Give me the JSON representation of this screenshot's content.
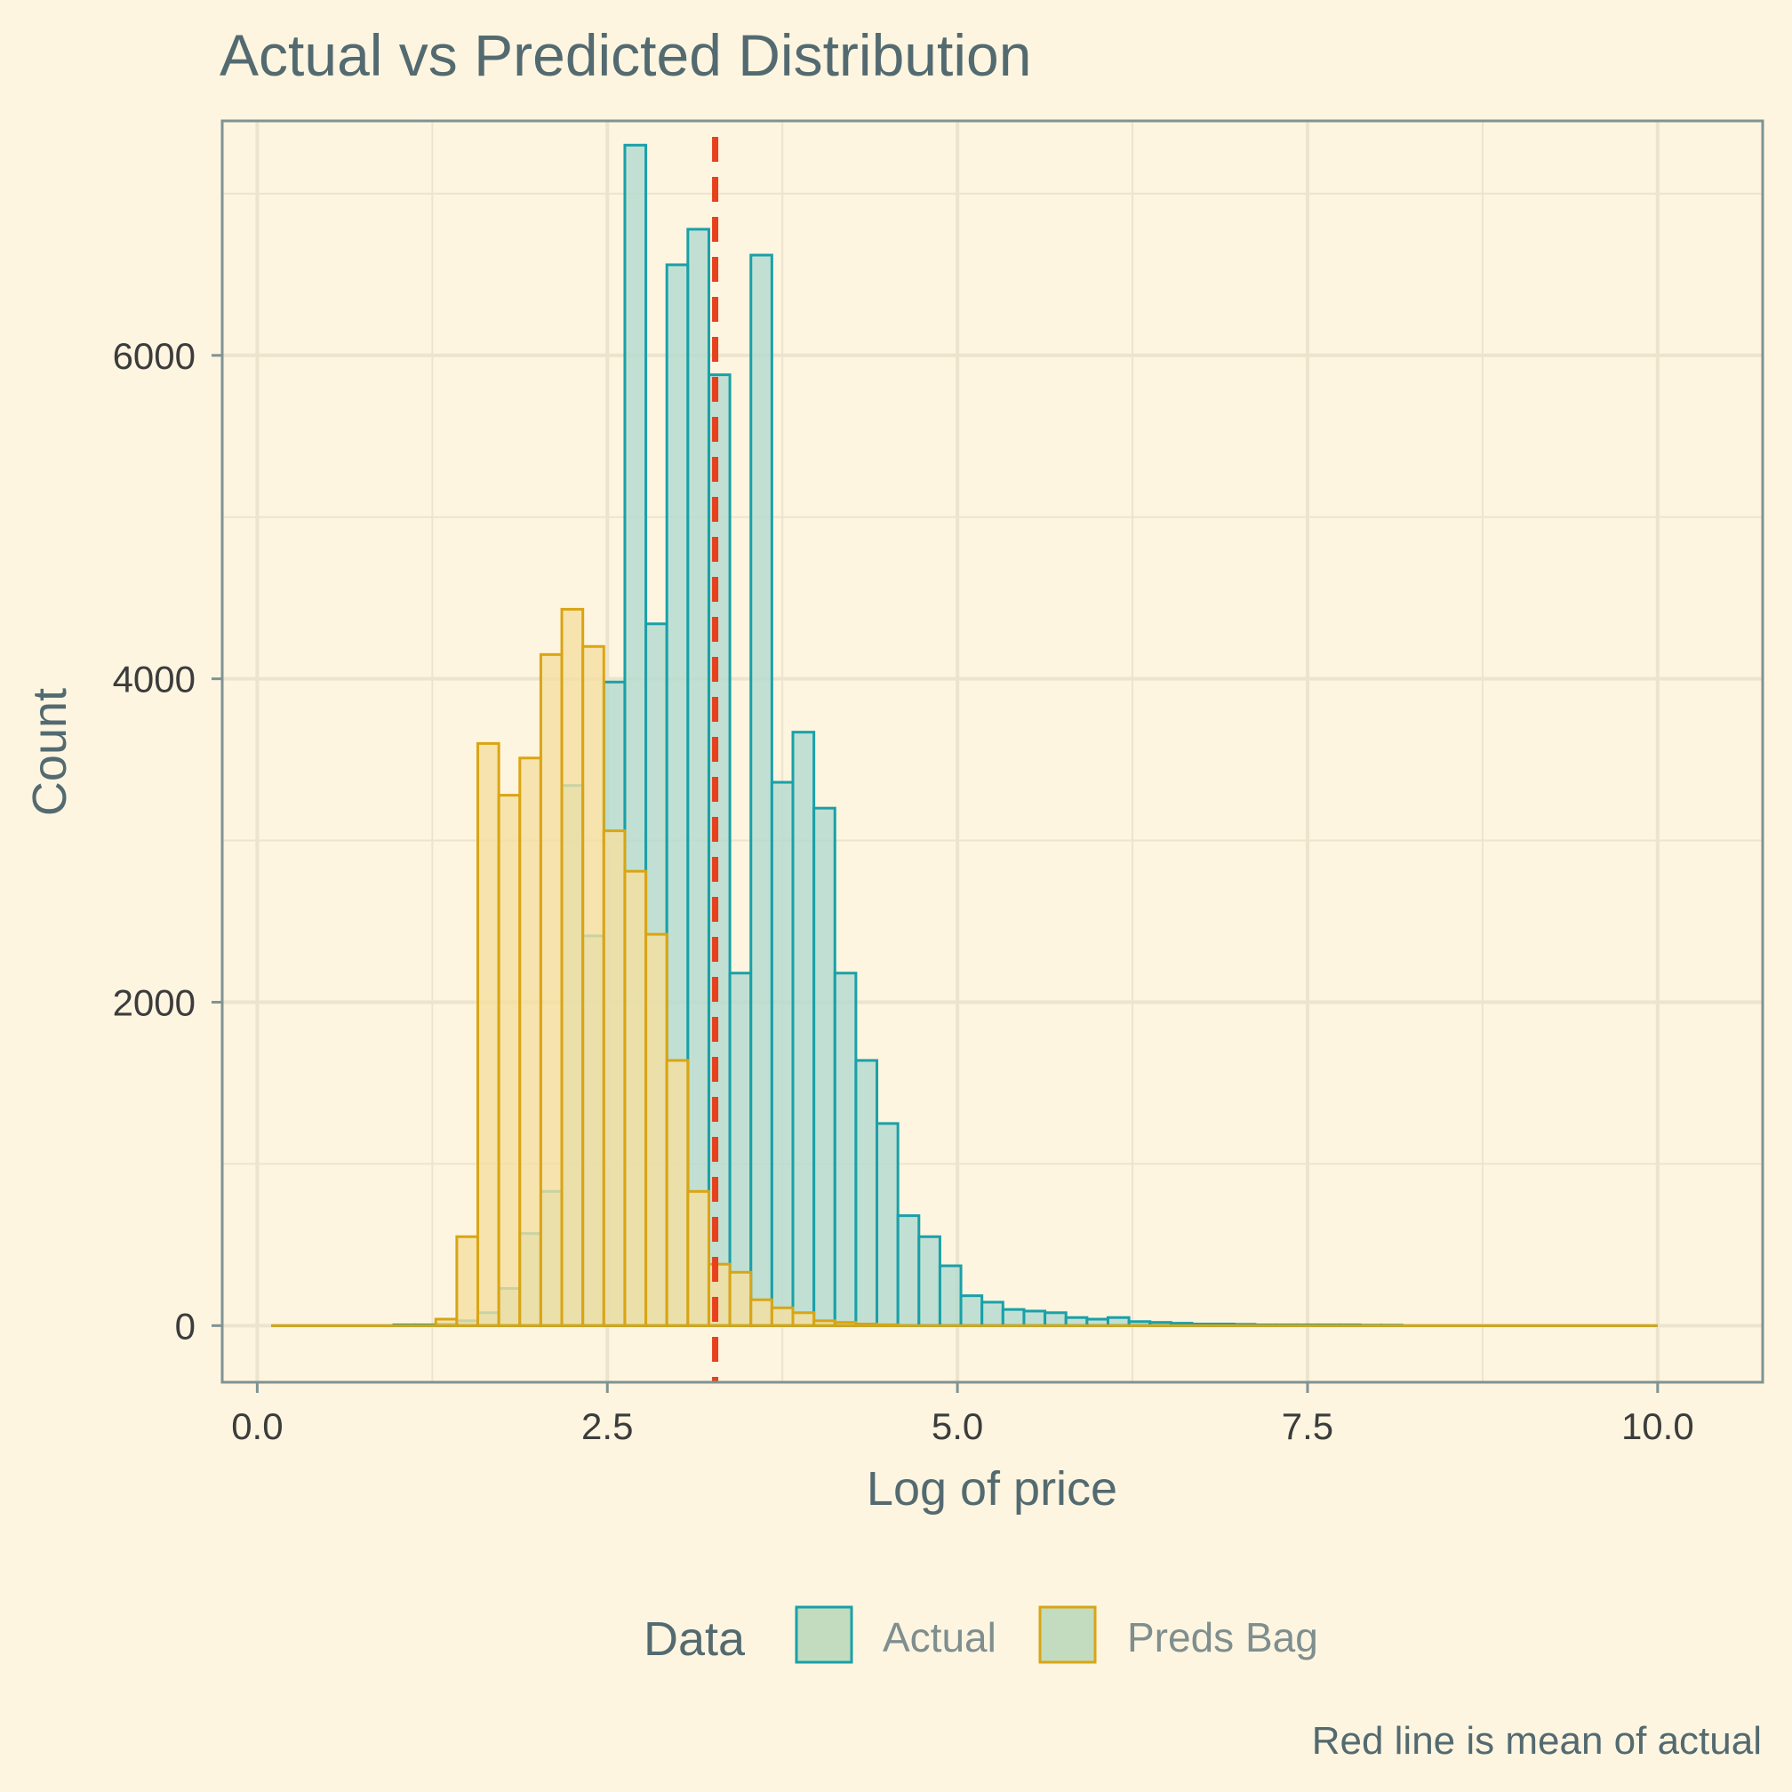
{
  "chart_data": {
    "type": "histogram",
    "title": "Actual vs Predicted Distribution",
    "xlabel": "Log of price",
    "ylabel": "Count",
    "caption": "Red line is mean of actual",
    "xlim": [
      -0.25,
      10.75
    ],
    "ylim": [
      -350,
      7450
    ],
    "x_ticks": [
      0,
      2.5,
      5,
      7.5,
      10
    ],
    "x_tick_labels": [
      "0.0",
      "2.5",
      "5.0",
      "7.5",
      "10.0"
    ],
    "y_ticks": [
      0,
      2000,
      4000,
      6000
    ],
    "y_tick_labels": [
      "0",
      "2000",
      "4000",
      "6000"
    ],
    "grid": true,
    "bin_width": 0.15,
    "legend": {
      "title": "Data",
      "position": "bottom"
    },
    "mean_line": {
      "x": 3.27,
      "color": "#e8401c",
      "style": "dashed"
    },
    "series": [
      {
        "name": "Actual",
        "color": "#1aa0a8",
        "fill": "#b2dbcf",
        "bins": [
          {
            "x": 1.05,
            "count": 5
          },
          {
            "x": 1.2,
            "count": 5
          },
          {
            "x": 1.35,
            "count": 10
          },
          {
            "x": 1.5,
            "count": 30
          },
          {
            "x": 1.65,
            "count": 80
          },
          {
            "x": 1.8,
            "count": 230
          },
          {
            "x": 1.95,
            "count": 570
          },
          {
            "x": 2.1,
            "count": 830
          },
          {
            "x": 2.25,
            "count": 3340
          },
          {
            "x": 2.4,
            "count": 2410
          },
          {
            "x": 2.55,
            "count": 3980
          },
          {
            "x": 2.7,
            "count": 7300
          },
          {
            "x": 2.85,
            "count": 4340
          },
          {
            "x": 3.0,
            "count": 6560
          },
          {
            "x": 3.15,
            "count": 6780
          },
          {
            "x": 3.3,
            "count": 5880
          },
          {
            "x": 3.45,
            "count": 2180
          },
          {
            "x": 3.6,
            "count": 6620
          },
          {
            "x": 3.75,
            "count": 3360
          },
          {
            "x": 3.9,
            "count": 3670
          },
          {
            "x": 4.05,
            "count": 3200
          },
          {
            "x": 4.2,
            "count": 2180
          },
          {
            "x": 4.35,
            "count": 1640
          },
          {
            "x": 4.5,
            "count": 1250
          },
          {
            "x": 4.65,
            "count": 680
          },
          {
            "x": 4.8,
            "count": 550
          },
          {
            "x": 4.95,
            "count": 370
          },
          {
            "x": 5.1,
            "count": 185
          },
          {
            "x": 5.25,
            "count": 145
          },
          {
            "x": 5.4,
            "count": 100
          },
          {
            "x": 5.55,
            "count": 90
          },
          {
            "x": 5.7,
            "count": 80
          },
          {
            "x": 5.85,
            "count": 50
          },
          {
            "x": 6.0,
            "count": 40
          },
          {
            "x": 6.15,
            "count": 50
          },
          {
            "x": 6.3,
            "count": 25
          },
          {
            "x": 6.45,
            "count": 20
          },
          {
            "x": 6.6,
            "count": 15
          },
          {
            "x": 6.75,
            "count": 10
          },
          {
            "x": 6.9,
            "count": 10
          },
          {
            "x": 7.05,
            "count": 8
          },
          {
            "x": 7.2,
            "count": 5
          },
          {
            "x": 7.35,
            "count": 5
          },
          {
            "x": 7.5,
            "count": 5
          },
          {
            "x": 7.65,
            "count": 5
          },
          {
            "x": 7.8,
            "count": 5
          },
          {
            "x": 7.95,
            "count": 3
          },
          {
            "x": 8.1,
            "count": 3
          }
        ]
      },
      {
        "name": "Preds Bag",
        "color": "#d9a514",
        "fill": "#f5dfa0",
        "bins": [
          {
            "x": 1.35,
            "count": 40
          },
          {
            "x": 1.5,
            "count": 550
          },
          {
            "x": 1.65,
            "count": 3600
          },
          {
            "x": 1.8,
            "count": 3280
          },
          {
            "x": 1.95,
            "count": 3510
          },
          {
            "x": 2.1,
            "count": 4150
          },
          {
            "x": 2.25,
            "count": 4430
          },
          {
            "x": 2.4,
            "count": 4200
          },
          {
            "x": 2.55,
            "count": 3060
          },
          {
            "x": 2.7,
            "count": 2810
          },
          {
            "x": 2.85,
            "count": 2420
          },
          {
            "x": 3.0,
            "count": 1640
          },
          {
            "x": 3.15,
            "count": 830
          },
          {
            "x": 3.3,
            "count": 380
          },
          {
            "x": 3.45,
            "count": 330
          },
          {
            "x": 3.6,
            "count": 160
          },
          {
            "x": 3.75,
            "count": 110
          },
          {
            "x": 3.9,
            "count": 80
          },
          {
            "x": 4.05,
            "count": 30
          },
          {
            "x": 4.2,
            "count": 20
          },
          {
            "x": 4.35,
            "count": 10
          },
          {
            "x": 4.5,
            "count": 5
          }
        ]
      }
    ],
    "data_range": [
      0.1,
      10.0
    ]
  }
}
